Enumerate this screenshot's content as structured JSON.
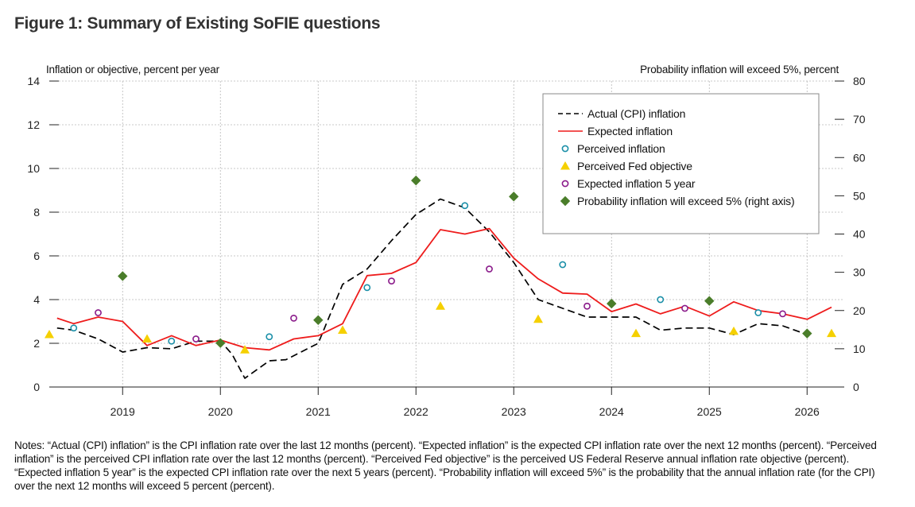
{
  "title": "Figure 1: Summary of Existing SoFIE questions",
  "notes": "Notes: “Actual (CPI) inflation” is the CPI inflation rate over the last 12 months (percent). “Expected inflation” is the expected CPI inflation rate over the next 12 months (percent). “Perceived inflation” is the perceived CPI inflation rate over the last 12 months (percent). “Perceived Fed objective” is the perceived US Federal Reserve annual inflation rate objective (percent). “Expected inflation 5 year” is the expected CPI inflation rate over the next 5 years (percent). “Probability inflation will exceed 5%” is the probability that the annual inflation rate (for the CPI) over the next 12 months will exceed 5 percent (percent).",
  "colors": {
    "actual": "#000000",
    "expected": "#ee1c1c",
    "perceived": "#1a8fa8",
    "fed_objective": "#f5d000",
    "expected_5y": "#8a1a8a",
    "probability": "#4a7d2a",
    "grid": "#b8b8b8"
  },
  "chart_data": {
    "type": "line",
    "ylabel": "Inflation or objective, percent per year",
    "ylabel_right": "Probability inflation will exceed 5%, percent",
    "ylim": [
      0,
      14
    ],
    "ylim_right": [
      0,
      80
    ],
    "xlim": [
      2018.25,
      2026.38
    ],
    "x_ticks": [
      2019,
      2020,
      2021,
      2022,
      2023,
      2024,
      2025,
      2026
    ],
    "x_tick_labels": [
      "2019",
      "2020",
      "2021",
      "2022",
      "2023",
      "2024",
      "2025",
      "2026"
    ],
    "y_ticks": [
      0,
      2,
      4,
      6,
      8,
      10,
      12,
      14
    ],
    "y_tick_labels": [
      "0",
      "2",
      "4",
      "6",
      "8",
      "10",
      "12",
      "14"
    ],
    "y_ticks_right": [
      0,
      10,
      20,
      30,
      40,
      50,
      60,
      70,
      80
    ],
    "y_tick_labels_right": [
      "0",
      "10",
      "20",
      "30",
      "40",
      "50",
      "60",
      "70",
      "80"
    ],
    "grid": true,
    "legend_position": "top-right",
    "series": [
      {
        "name": "Actual (CPI) inflation",
        "style": "dashed-line",
        "axis": "left",
        "x": [
          2018.33,
          2018.5,
          2018.75,
          2019.0,
          2019.25,
          2019.5,
          2019.75,
          2020.0,
          2020.12,
          2020.25,
          2020.5,
          2020.67,
          2021.0,
          2021.25,
          2021.5,
          2021.75,
          2022.0,
          2022.25,
          2022.5,
          2022.75,
          2023.0,
          2023.25,
          2023.5,
          2023.75,
          2024.0,
          2024.25,
          2024.5,
          2024.75,
          2025.0,
          2025.25,
          2025.5,
          2025.75,
          2026.0
        ],
        "y": [
          2.7,
          2.6,
          2.2,
          1.6,
          1.8,
          1.75,
          2.1,
          2.1,
          1.5,
          0.4,
          1.2,
          1.25,
          2.0,
          4.7,
          5.4,
          6.7,
          7.9,
          8.6,
          8.2,
          7.1,
          5.7,
          4.0,
          3.6,
          3.2,
          3.2,
          3.2,
          2.6,
          2.7,
          2.7,
          2.4,
          2.9,
          2.8,
          2.4
        ]
      },
      {
        "name": "Expected inflation",
        "style": "line",
        "axis": "left",
        "x": [
          2018.33,
          2018.5,
          2018.75,
          2019.0,
          2019.25,
          2019.5,
          2019.75,
          2020.0,
          2020.25,
          2020.5,
          2020.75,
          2021.0,
          2021.25,
          2021.5,
          2021.75,
          2022.0,
          2022.25,
          2022.5,
          2022.75,
          2023.0,
          2023.25,
          2023.5,
          2023.75,
          2024.0,
          2024.25,
          2024.5,
          2024.75,
          2025.0,
          2025.25,
          2025.5,
          2025.75,
          2026.0,
          2026.25
        ],
        "y": [
          3.15,
          2.9,
          3.2,
          3.0,
          1.9,
          2.35,
          1.9,
          2.15,
          1.8,
          1.7,
          2.2,
          2.35,
          2.9,
          5.1,
          5.2,
          5.7,
          7.2,
          7.0,
          7.25,
          5.9,
          4.95,
          4.3,
          4.25,
          3.45,
          3.8,
          3.35,
          3.7,
          3.25,
          3.9,
          3.5,
          3.35,
          3.1,
          3.65
        ]
      },
      {
        "name": "Perceived inflation",
        "style": "open-circle",
        "axis": "left",
        "x": [
          2018.5,
          2019.5,
          2020.5,
          2021.5,
          2022.5,
          2023.5,
          2024.5,
          2025.5
        ],
        "y": [
          2.7,
          2.1,
          2.3,
          4.55,
          8.3,
          5.6,
          4.0,
          3.4
        ]
      },
      {
        "name": "Perceived Fed objective",
        "style": "triangle",
        "axis": "left",
        "x": [
          2018.25,
          2019.25,
          2020.25,
          2021.25,
          2022.25,
          2023.25,
          2024.25,
          2025.25,
          2026.25
        ],
        "y": [
          2.4,
          2.2,
          1.7,
          2.6,
          3.7,
          3.1,
          2.45,
          2.55,
          2.45
        ]
      },
      {
        "name": "Expected inflation 5 year",
        "style": "open-circle",
        "axis": "left",
        "x": [
          2018.75,
          2019.75,
          2020.75,
          2021.75,
          2022.75,
          2023.75,
          2024.75,
          2025.75
        ],
        "y": [
          3.4,
          2.2,
          3.15,
          4.85,
          5.4,
          3.7,
          3.6,
          3.35
        ]
      },
      {
        "name": "Probability inflation will exceed 5% (right axis)",
        "style": "diamond",
        "axis": "right",
        "x": [
          2019.0,
          2020.0,
          2021.0,
          2022.0,
          2023.0,
          2024.0,
          2025.0,
          2026.0
        ],
        "y": [
          29,
          11.5,
          17.5,
          54,
          49.8,
          21.8,
          22.5,
          14
        ]
      }
    ]
  }
}
